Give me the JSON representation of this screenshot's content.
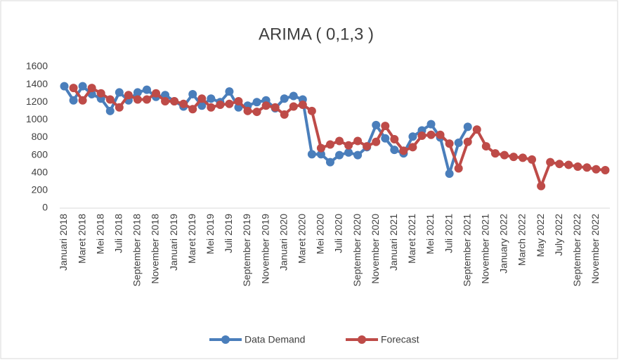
{
  "chart_data": {
    "type": "line",
    "title": "ARIMA ( 0,1,3 )",
    "categories": [
      "Januari 2018",
      null,
      "Maret 2018",
      null,
      "Mei 2018",
      null,
      "Juli 2018",
      null,
      "September 2018",
      null,
      "November 2018",
      null,
      "Januari 2019",
      null,
      "Maret 2019",
      null,
      "Mei 2019",
      null,
      "Juli 2019",
      null,
      "September 2019",
      null,
      "November 2019",
      null,
      "Januari 2020",
      null,
      "Maret 2020",
      null,
      "Mei 2020",
      null,
      "Juli 2020",
      null,
      "September 2020",
      null,
      "November 2020",
      null,
      "Januari 2021",
      null,
      "Maret 2021",
      null,
      "Mei 2021",
      null,
      "Juli 2021",
      null,
      "September 2021",
      null,
      "November 2021",
      null,
      "January 2022",
      null,
      "March 2022",
      null,
      "May 2022",
      null,
      "July 2022",
      null,
      "September 2022",
      null,
      "November 2022",
      null
    ],
    "series": [
      {
        "name": "Data Demand",
        "color": "#4a7ebb",
        "values": [
          1380,
          1220,
          1380,
          1290,
          1240,
          1100,
          1310,
          1220,
          1310,
          1340,
          1260,
          1280,
          1210,
          1150,
          1290,
          1160,
          1240,
          1200,
          1320,
          1140,
          1160,
          1200,
          1220,
          1130,
          1240,
          1270,
          1230,
          610,
          610,
          520,
          600,
          630,
          600,
          690,
          940,
          790,
          660,
          620,
          810,
          880,
          950,
          800,
          390,
          740,
          920,
          null,
          null,
          null,
          null,
          null,
          null,
          null,
          null,
          null,
          null,
          null,
          null,
          null,
          null,
          null
        ]
      },
      {
        "name": "Forecast",
        "color": "#be4b48",
        "values": [
          null,
          1360,
          1220,
          1360,
          1300,
          1230,
          1140,
          1280,
          1230,
          1230,
          1300,
          1210,
          1210,
          1180,
          1120,
          1240,
          1140,
          1170,
          1180,
          1210,
          1100,
          1090,
          1160,
          1140,
          1060,
          1150,
          1170,
          1100,
          680,
          720,
          760,
          710,
          760,
          700,
          750,
          930,
          780,
          650,
          690,
          820,
          830,
          830,
          730,
          450,
          750,
          890,
          700,
          620,
          600,
          580,
          570,
          550,
          250,
          520,
          500,
          490,
          470,
          460,
          440,
          430
        ]
      }
    ],
    "ylim": [
      0,
      1600
    ],
    "yticks": [
      0,
      200,
      400,
      600,
      800,
      1000,
      1200,
      1400,
      1600
    ],
    "grid": false
  }
}
